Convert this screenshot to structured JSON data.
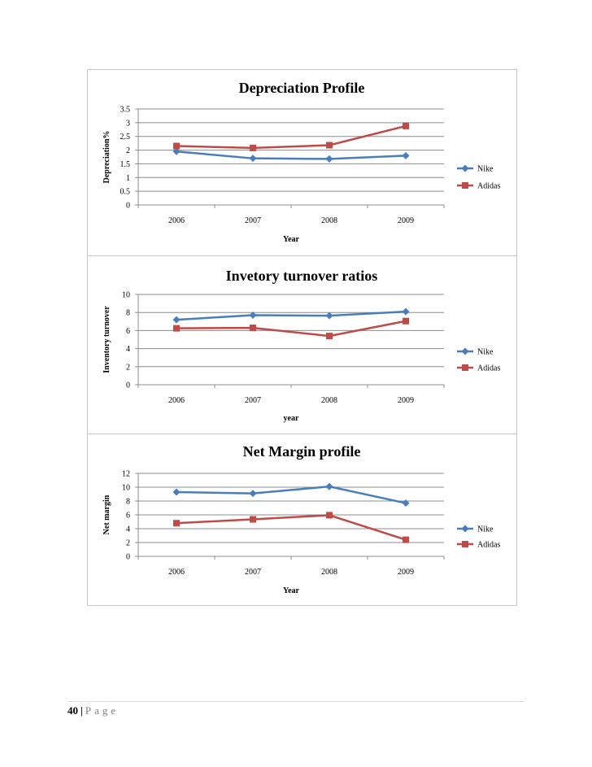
{
  "charts": [
    {
      "title": "Depreciation Profile",
      "ylabel": "Depreciation%",
      "xlabel": "Year",
      "chart_data": {
        "type": "line",
        "title": "Depreciation Profile",
        "xlabel": "Year",
        "ylabel": "Depreciation%",
        "categories": [
          "2006",
          "2007",
          "2008",
          "2009"
        ],
        "ylim": [
          0,
          3.5
        ],
        "yticks": [
          "0",
          "0.5",
          "1",
          "1.5",
          "2",
          "2.5",
          "3",
          "3.5"
        ],
        "series": [
          {
            "name": "Nike",
            "values": [
              1.95,
              1.7,
              1.68,
              1.8
            ],
            "color": "#4a7ebb",
            "marker": "diamond"
          },
          {
            "name": "Adidas",
            "values": [
              2.15,
              2.08,
              2.18,
              2.88
            ],
            "color": "#be4b48",
            "marker": "square"
          }
        ],
        "legend": "right",
        "grid": true
      }
    },
    {
      "title": "Invetory turnover ratios",
      "ylabel": "Inventory turnover",
      "xlabel": "year",
      "chart_data": {
        "type": "line",
        "title": "Invetory turnover ratios",
        "xlabel": "year",
        "ylabel": "Inventory turnover",
        "categories": [
          "2006",
          "2007",
          "2008",
          "2009"
        ],
        "ylim": [
          0,
          10
        ],
        "yticks": [
          "0",
          "2",
          "4",
          "6",
          "8",
          "10"
        ],
        "series": [
          {
            "name": "Nike",
            "values": [
              7.2,
              7.7,
              7.65,
              8.1
            ],
            "color": "#4a7ebb",
            "marker": "diamond"
          },
          {
            "name": "Adidas",
            "values": [
              6.25,
              6.3,
              5.4,
              7.05
            ],
            "color": "#be4b48",
            "marker": "square"
          }
        ],
        "legend": "right",
        "grid": true
      }
    },
    {
      "title": "Net Margin profile",
      "ylabel": "Net margin",
      "xlabel": "Year",
      "chart_data": {
        "type": "line",
        "title": "Net Margin profile",
        "xlabel": "Year",
        "ylabel": "Net margin",
        "categories": [
          "2006",
          "2007",
          "2008",
          "2009"
        ],
        "ylim": [
          0,
          12
        ],
        "yticks": [
          "0",
          "2",
          "4",
          "6",
          "8",
          "10",
          "12"
        ],
        "series": [
          {
            "name": "Nike",
            "values": [
              9.3,
              9.1,
              10.1,
              7.7
            ],
            "color": "#4a7ebb",
            "marker": "diamond"
          },
          {
            "name": "Adidas",
            "values": [
              4.8,
              5.35,
              5.95,
              2.4
            ],
            "color": "#be4b48",
            "marker": "square"
          }
        ],
        "legend": "right",
        "grid": true
      }
    }
  ],
  "footer": {
    "page_number": "40",
    "separator": "|",
    "page_word": "Page"
  }
}
